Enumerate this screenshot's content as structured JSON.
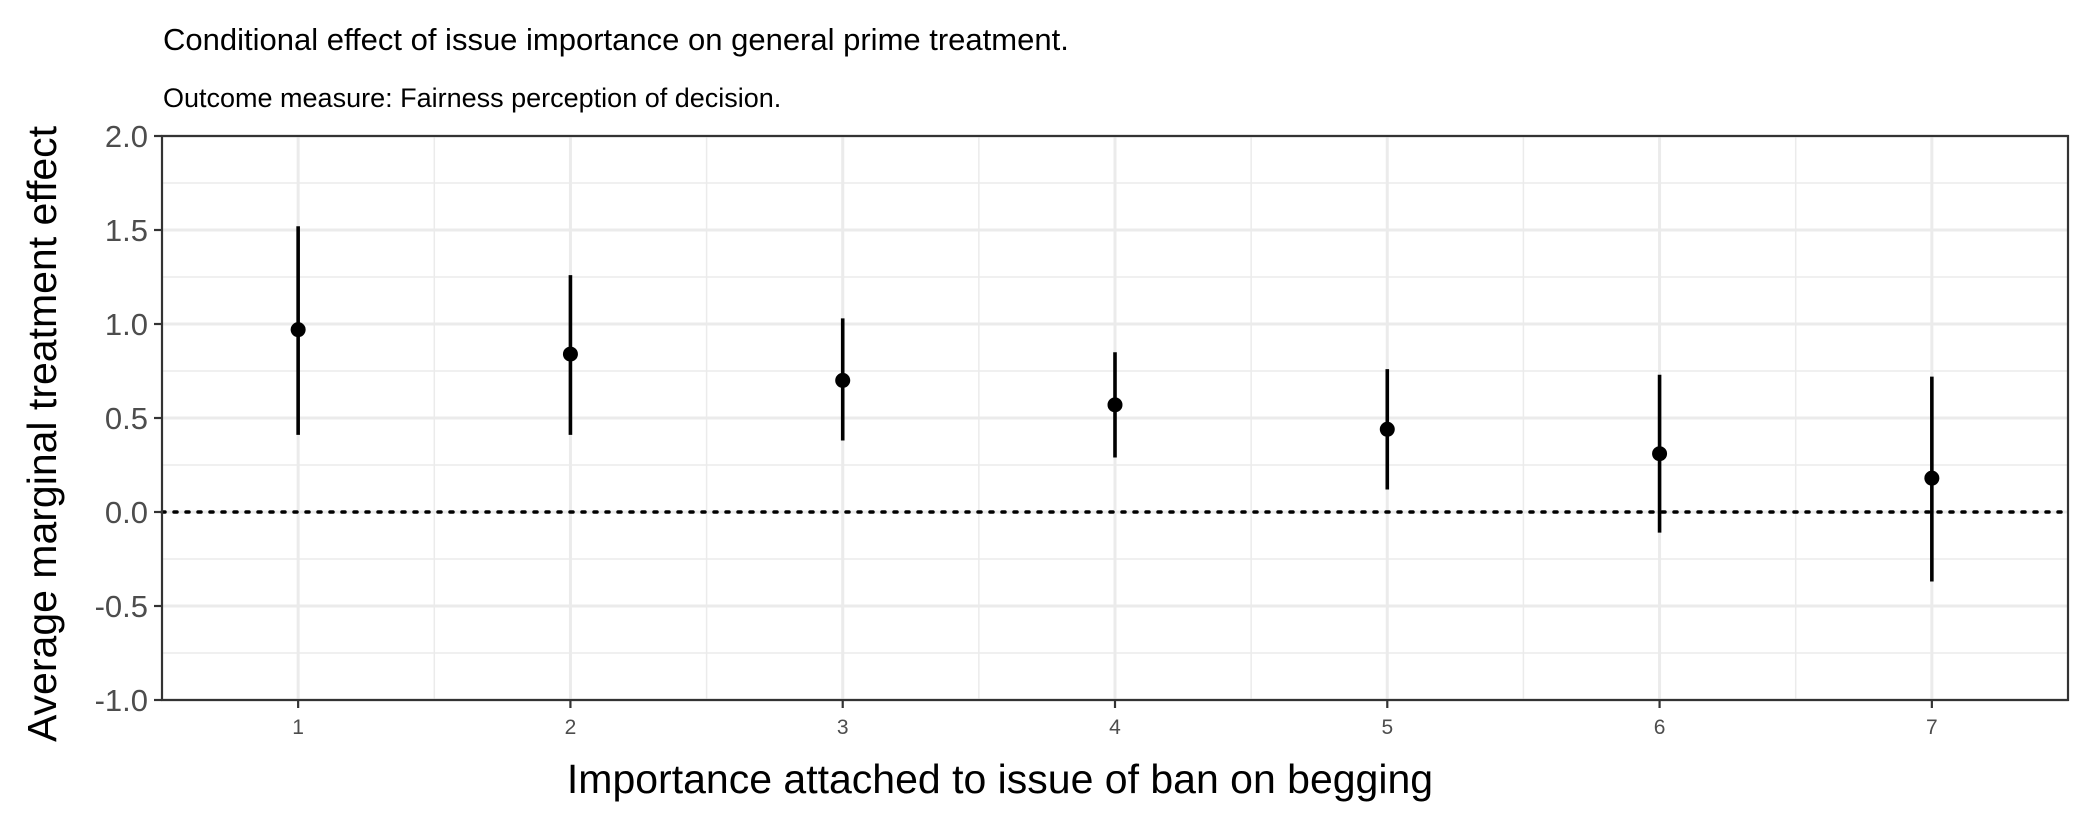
{
  "chart_data": {
    "type": "scatter",
    "subtype": "point-range",
    "title": "Conditional effect of issue importance on general prime treatment.",
    "subtitle": "Outcome measure: Fairness perception of decision.",
    "xlabel": "Importance attached to issue of ban on begging",
    "ylabel": "Average marginal treatment effect",
    "xlim": [
      0.5,
      7.5
    ],
    "ylim": [
      -1.0,
      2.0
    ],
    "x_ticks": [
      1,
      2,
      3,
      4,
      5,
      6,
      7
    ],
    "y_ticks": [
      "-1.0",
      "-0.5",
      "0.0",
      "0.5",
      "1.0",
      "1.5",
      "2.0"
    ],
    "reference_line": {
      "y": 0,
      "style": "dotted"
    },
    "grid": true,
    "colors": {
      "points": "#000000",
      "grid": "#ebebeb",
      "panel_border": "#333333"
    },
    "series": [
      {
        "x": [
          1,
          2,
          3,
          4,
          5,
          6,
          7
        ],
        "y": [
          0.97,
          0.84,
          0.7,
          0.57,
          0.44,
          0.31,
          0.18
        ],
        "lower": [
          0.41,
          0.41,
          0.38,
          0.29,
          0.12,
          -0.11,
          -0.37
        ],
        "upper": [
          1.52,
          1.26,
          1.03,
          0.85,
          0.76,
          0.73,
          0.72
        ]
      }
    ]
  }
}
